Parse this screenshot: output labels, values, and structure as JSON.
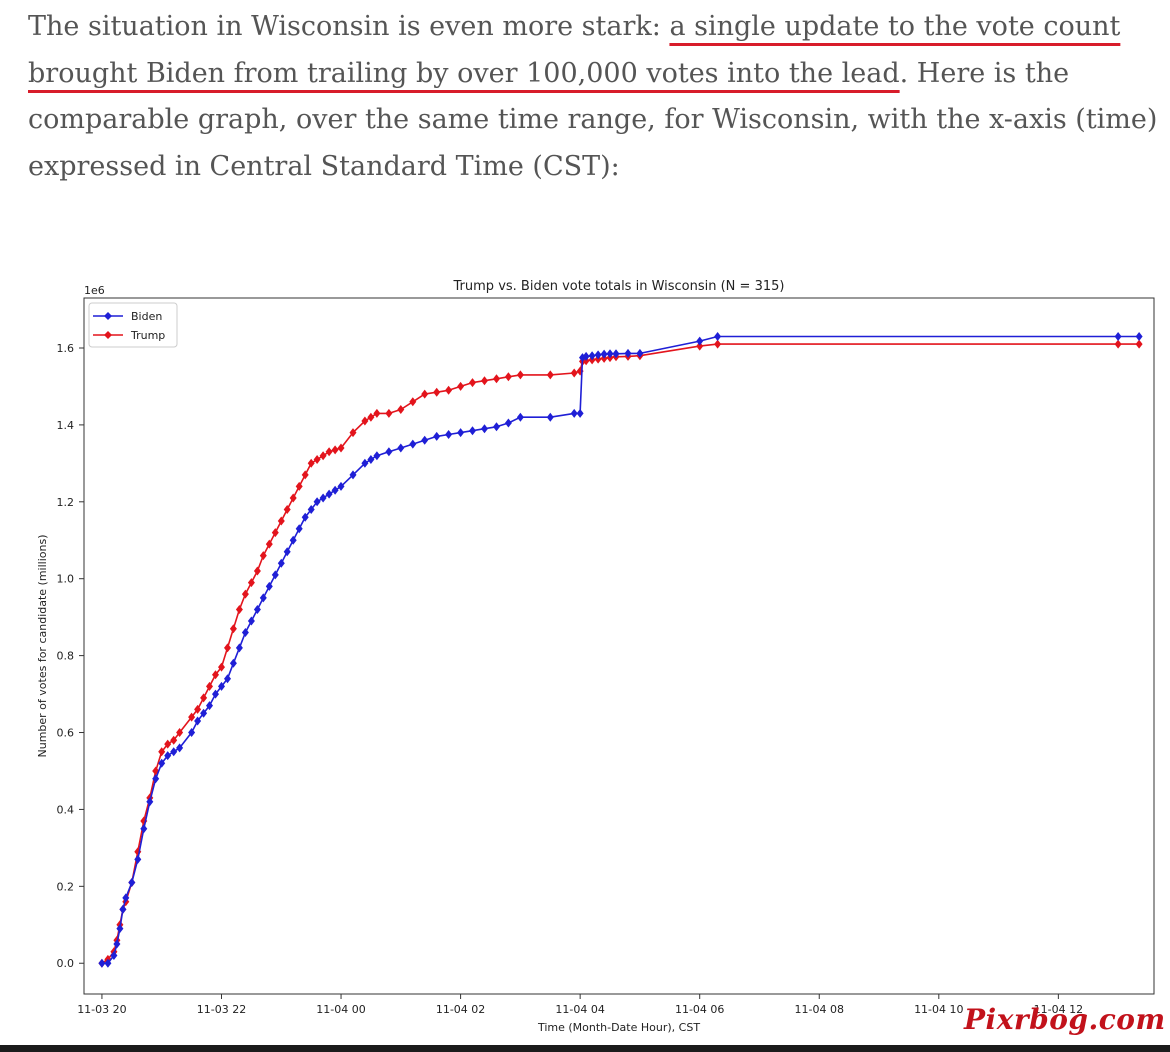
{
  "article": {
    "l1_plain": "The situation in Wisconsin is even more stark: ",
    "l1_hl": "a single update to the vote count",
    "l2_hl": "brought Biden from trailing by over 100,000 votes into the lead",
    "l2_plain": ". Here is the",
    "l3": "comparable graph, over the same time range, for Wisconsin, with the x-axis (time)",
    "l4": "expressed in Central Standard Time (CST):"
  },
  "watermark": "Pixrbog.com",
  "colors": {
    "biden": "#1f1fd6",
    "trump": "#e3141c",
    "text": "#555555",
    "underline": "#d81c2a"
  },
  "chart_data": {
    "type": "line",
    "title": "Trump vs. Biden vote totals in Wisconsin (N = 315)",
    "xlabel": "Time (Month-Date Hour), CST",
    "ylabel": "Number of votes for candidate (millions)",
    "y_multiplier": "1e6",
    "x_unit": "hours after 11-03 20:00 CST",
    "xlim": [
      -0.3,
      17.6
    ],
    "ylim": [
      -0.08,
      1.73
    ],
    "x_ticks": [
      0,
      2,
      4,
      6,
      8,
      10,
      12,
      14,
      16
    ],
    "x_tick_labels": [
      "11-03 20",
      "11-03 22",
      "11-04 00",
      "11-04 02",
      "11-04 04",
      "11-04 06",
      "11-04 08",
      "11-04 10",
      "11-04 12"
    ],
    "y_ticks": [
      0.0,
      0.2,
      0.4,
      0.6,
      0.8,
      1.0,
      1.2,
      1.4,
      1.6
    ],
    "y_tick_labels": [
      "0.0",
      "0.2",
      "0.4",
      "0.6",
      "0.8",
      "1.0",
      "1.2",
      "1.4",
      "1.6"
    ],
    "legend_position": "top-left",
    "grid": false,
    "series": [
      {
        "name": "Biden",
        "color": "#1f1fd6",
        "marker": "diamond",
        "x": [
          0.0,
          0.1,
          0.2,
          0.25,
          0.3,
          0.35,
          0.4,
          0.5,
          0.6,
          0.7,
          0.8,
          0.9,
          1.0,
          1.1,
          1.2,
          1.3,
          1.5,
          1.6,
          1.7,
          1.8,
          1.9,
          2.0,
          2.1,
          2.2,
          2.3,
          2.4,
          2.5,
          2.6,
          2.7,
          2.8,
          2.9,
          3.0,
          3.1,
          3.2,
          3.3,
          3.4,
          3.5,
          3.6,
          3.7,
          3.8,
          3.9,
          4.0,
          4.2,
          4.4,
          4.5,
          4.6,
          4.8,
          5.0,
          5.2,
          5.4,
          5.6,
          5.8,
          6.0,
          6.2,
          6.4,
          6.6,
          6.8,
          7.0,
          7.5,
          7.9,
          8.0,
          8.04,
          8.1,
          8.2,
          8.3,
          8.4,
          8.5,
          8.6,
          8.8,
          9.0,
          10.0,
          10.3,
          17.0,
          17.35
        ],
        "values": [
          0.0,
          0.0,
          0.02,
          0.05,
          0.09,
          0.14,
          0.17,
          0.21,
          0.27,
          0.35,
          0.42,
          0.48,
          0.52,
          0.54,
          0.55,
          0.56,
          0.6,
          0.63,
          0.65,
          0.67,
          0.7,
          0.72,
          0.74,
          0.78,
          0.82,
          0.86,
          0.89,
          0.92,
          0.95,
          0.98,
          1.01,
          1.04,
          1.07,
          1.1,
          1.13,
          1.16,
          1.18,
          1.2,
          1.21,
          1.22,
          1.23,
          1.24,
          1.27,
          1.3,
          1.31,
          1.32,
          1.33,
          1.34,
          1.35,
          1.36,
          1.37,
          1.375,
          1.38,
          1.385,
          1.39,
          1.395,
          1.405,
          1.42,
          1.42,
          1.43,
          1.43,
          1.575,
          1.578,
          1.58,
          1.582,
          1.584,
          1.585,
          1.585,
          1.586,
          1.586,
          1.618,
          1.63,
          1.63,
          1.63
        ]
      },
      {
        "name": "Trump",
        "color": "#e3141c",
        "marker": "diamond",
        "x": [
          0.0,
          0.1,
          0.2,
          0.25,
          0.3,
          0.35,
          0.4,
          0.5,
          0.6,
          0.7,
          0.8,
          0.9,
          1.0,
          1.1,
          1.2,
          1.3,
          1.5,
          1.6,
          1.7,
          1.8,
          1.9,
          2.0,
          2.1,
          2.2,
          2.3,
          2.4,
          2.5,
          2.6,
          2.7,
          2.8,
          2.9,
          3.0,
          3.1,
          3.2,
          3.3,
          3.4,
          3.5,
          3.6,
          3.7,
          3.8,
          3.9,
          4.0,
          4.2,
          4.4,
          4.5,
          4.6,
          4.8,
          5.0,
          5.2,
          5.4,
          5.6,
          5.8,
          6.0,
          6.2,
          6.4,
          6.6,
          6.8,
          7.0,
          7.5,
          7.9,
          8.0,
          8.04,
          8.1,
          8.2,
          8.3,
          8.4,
          8.5,
          8.6,
          8.8,
          9.0,
          10.0,
          10.3,
          17.0,
          17.35
        ],
        "values": [
          0.0,
          0.01,
          0.03,
          0.06,
          0.1,
          0.14,
          0.16,
          0.21,
          0.29,
          0.37,
          0.43,
          0.5,
          0.55,
          0.57,
          0.58,
          0.6,
          0.64,
          0.66,
          0.69,
          0.72,
          0.75,
          0.77,
          0.82,
          0.87,
          0.92,
          0.96,
          0.99,
          1.02,
          1.06,
          1.09,
          1.12,
          1.15,
          1.18,
          1.21,
          1.24,
          1.27,
          1.3,
          1.31,
          1.32,
          1.33,
          1.335,
          1.34,
          1.38,
          1.41,
          1.42,
          1.43,
          1.43,
          1.44,
          1.46,
          1.48,
          1.485,
          1.49,
          1.5,
          1.51,
          1.515,
          1.52,
          1.525,
          1.53,
          1.53,
          1.535,
          1.54,
          1.565,
          1.567,
          1.569,
          1.571,
          1.573,
          1.575,
          1.577,
          1.578,
          1.58,
          1.605,
          1.61,
          1.61,
          1.61
        ]
      }
    ]
  }
}
